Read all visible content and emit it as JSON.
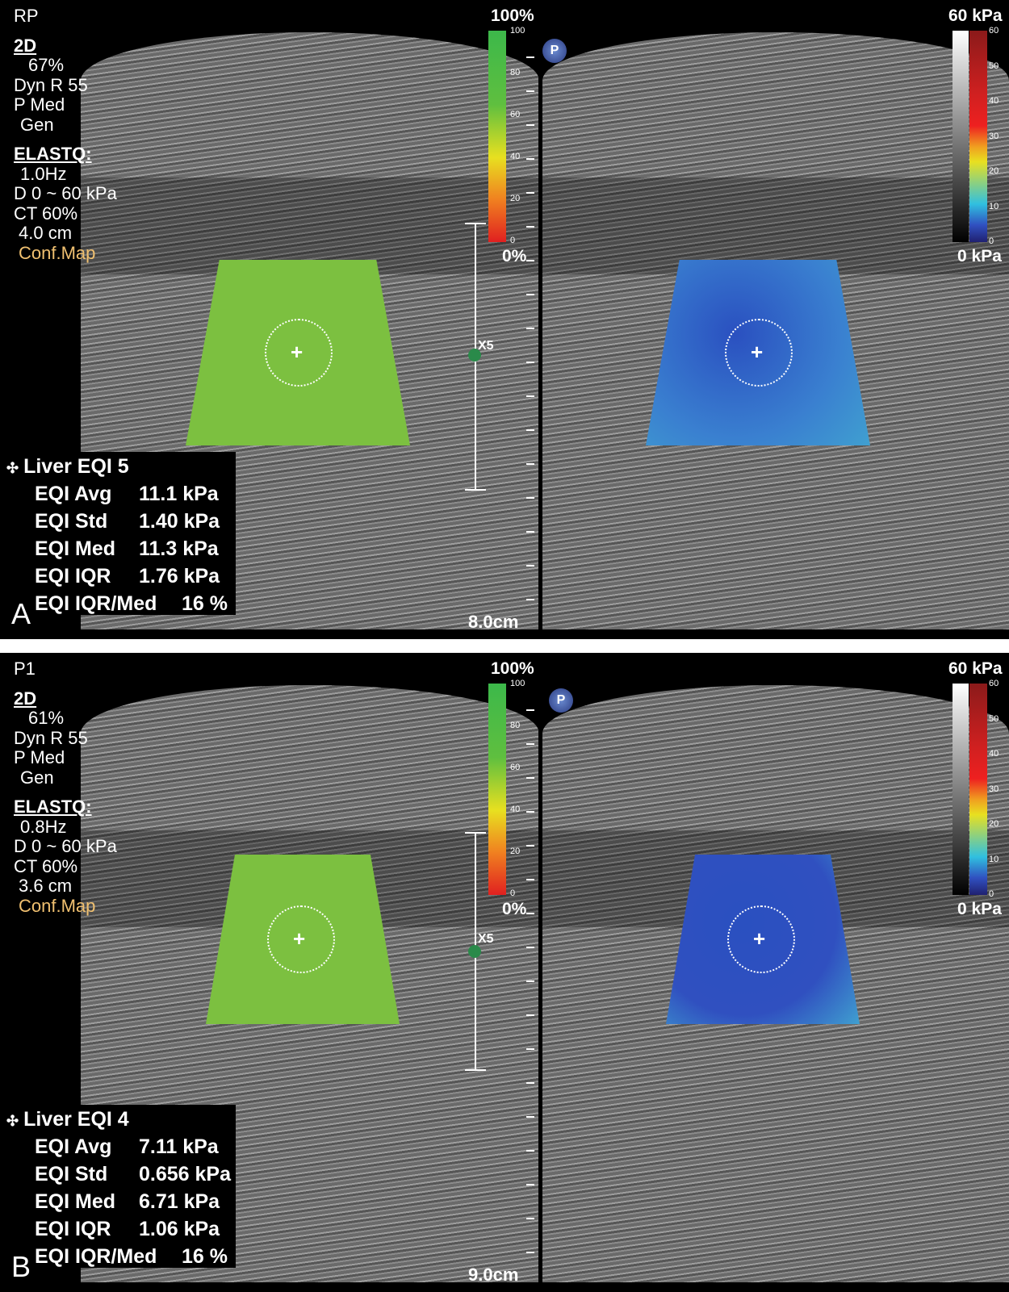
{
  "panels": [
    {
      "letter": "A",
      "mode": "RP",
      "params": {
        "2d": "2D",
        "gain": "67%",
        "dyn": "Dyn R 55",
        "p": "P Med",
        "gen": "Gen",
        "elastq": "ELASTQ:",
        "freq": "1.0Hz",
        "range": "D 0 ~ 60 kPa",
        "ct": "CT 60%",
        "depth_roi": "4.0 cm",
        "conf": "Conf.Map"
      },
      "stats": {
        "title": "Liver EQI 5",
        "rows": [
          {
            "label": "EQI Avg",
            "value": "11.1 kPa"
          },
          {
            "label": "EQI Std",
            "value": "1.40 kPa"
          },
          {
            "label": "EQI Med",
            "value": "11.3 kPa"
          },
          {
            "label": "EQI IQR",
            "value": "1.76 kPa"
          },
          {
            "label": "EQI IQR/Med",
            "value": "16 %"
          }
        ]
      },
      "depth": "8.0cm",
      "zoom": "X5"
    },
    {
      "letter": "B",
      "mode": "P1",
      "params": {
        "2d": "2D",
        "gain": "61%",
        "dyn": "Dyn R 55",
        "p": "P Med",
        "gen": "Gen",
        "elastq": "ELASTQ:",
        "freq": "0.8Hz",
        "range": "D 0 ~ 60 kPa",
        "ct": "CT 60%",
        "depth_roi": "3.6 cm",
        "conf": "Conf.Map"
      },
      "stats": {
        "title": "Liver EQI 4",
        "rows": [
          {
            "label": "EQI Avg",
            "value": "7.11 kPa"
          },
          {
            "label": "EQI Std",
            "value": "0.656 kPa"
          },
          {
            "label": "EQI Med",
            "value": "6.71 kPa"
          },
          {
            "label": "EQI IQR",
            "value": "1.06 kPa"
          },
          {
            "label": "EQI IQR/Med",
            "value": "16 %"
          }
        ]
      },
      "depth": "9.0cm",
      "zoom": "X5"
    }
  ],
  "confidence_bar": {
    "top": "100%",
    "bottom": "0%",
    "ticks": [
      "100",
      "80",
      "60",
      "40",
      "20",
      "0"
    ]
  },
  "elasticity_bar": {
    "top": "60 kPa",
    "bottom": "0 kPa",
    "ticks": [
      "60",
      "50",
      "40",
      "30",
      "20",
      "10",
      "0"
    ]
  },
  "badge": "P",
  "colors": {
    "conf_map": "#f0c070",
    "roi_conf": "#7cc040",
    "roi_elast_A": "#3a80d0",
    "roi_elast_B": "#3050c0"
  }
}
